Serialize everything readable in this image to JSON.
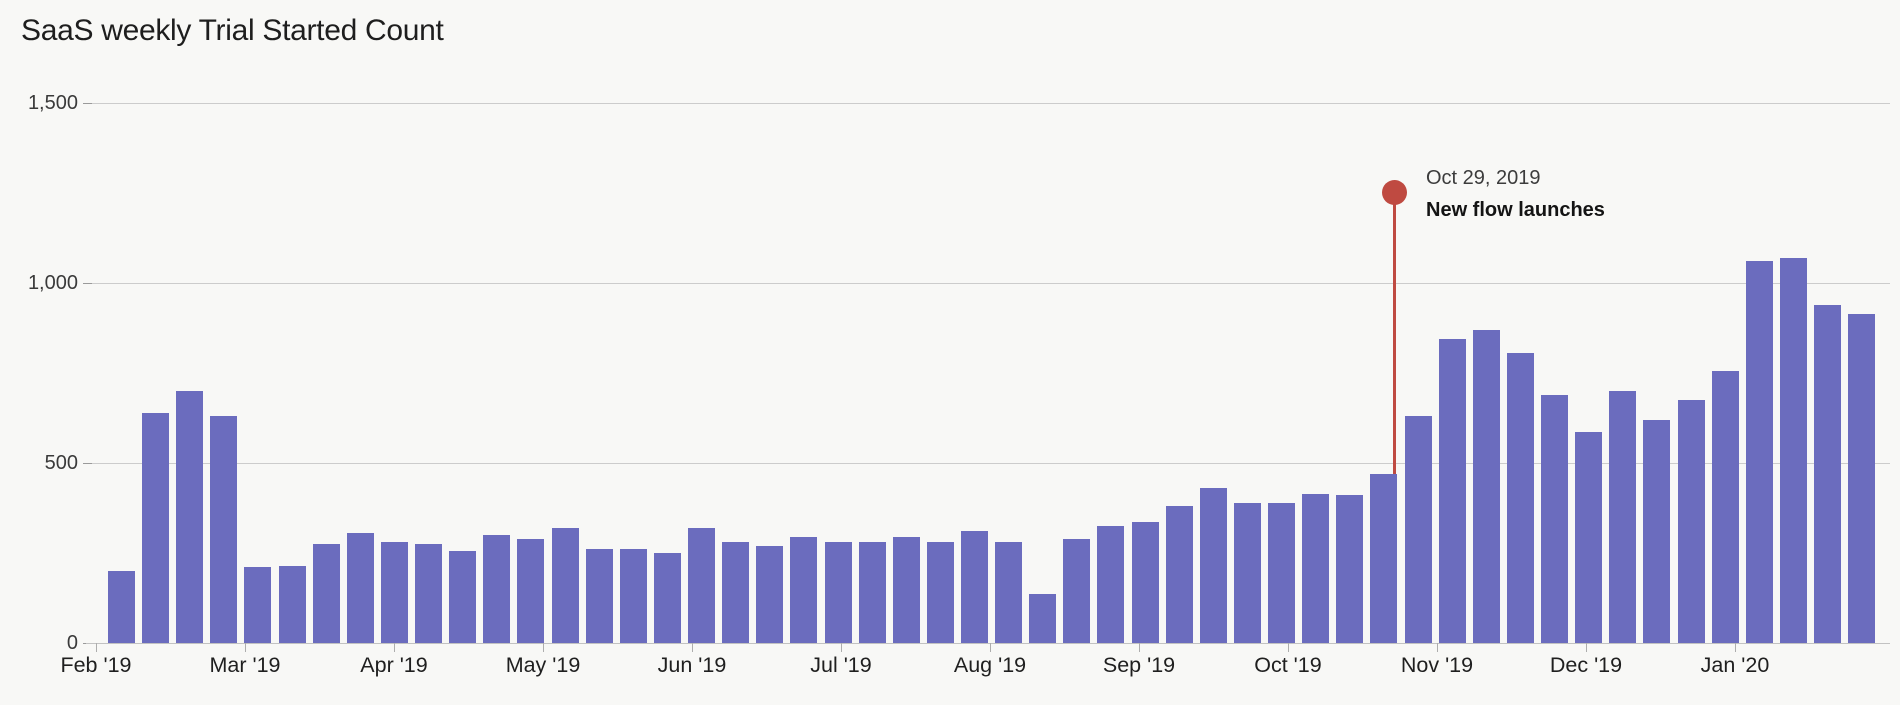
{
  "page": {
    "background_color": "#f8f8f6"
  },
  "chart_data": {
    "type": "bar",
    "title": "SaaS weekly Trial Started Count",
    "x_unit": "week",
    "categories_months": [
      "Feb '19",
      "Mar '19",
      "Apr '19",
      "May '19",
      "Jun '19",
      "Jul '19",
      "Aug '19",
      "Sep '19",
      "Oct '19",
      "Nov '19",
      "Dec '19",
      "Jan '20"
    ],
    "values": [
      200,
      640,
      700,
      630,
      210,
      215,
      275,
      305,
      280,
      275,
      255,
      300,
      290,
      320,
      260,
      260,
      250,
      320,
      280,
      270,
      295,
      280,
      280,
      295,
      280,
      310,
      280,
      135,
      290,
      325,
      335,
      380,
      430,
      390,
      390,
      415,
      410,
      470,
      630,
      845,
      870,
      805,
      690,
      585,
      700,
      620,
      675,
      755,
      1060,
      1070,
      940,
      915
    ],
    "y_ticks": [
      {
        "value": 0,
        "label": "0"
      },
      {
        "value": 500,
        "label": "500"
      },
      {
        "value": 1000,
        "label": "1,000"
      },
      {
        "value": 1500,
        "label": "1,500"
      }
    ],
    "ylim": [
      0,
      1500
    ],
    "grid": "horizontal",
    "legend": "none",
    "annotation": {
      "date_label": "Oct 29, 2019",
      "text": "New flow launches",
      "bar_index": 37,
      "line_end_value": 470
    },
    "colors": {
      "bar": "#6b6cbe",
      "annotation_red": "#bf4a41",
      "gridline": "#cccccc",
      "baseline": "#c2c2c2",
      "title_text": "#1e1e1e",
      "axis_text": "#3a3a3a"
    }
  }
}
